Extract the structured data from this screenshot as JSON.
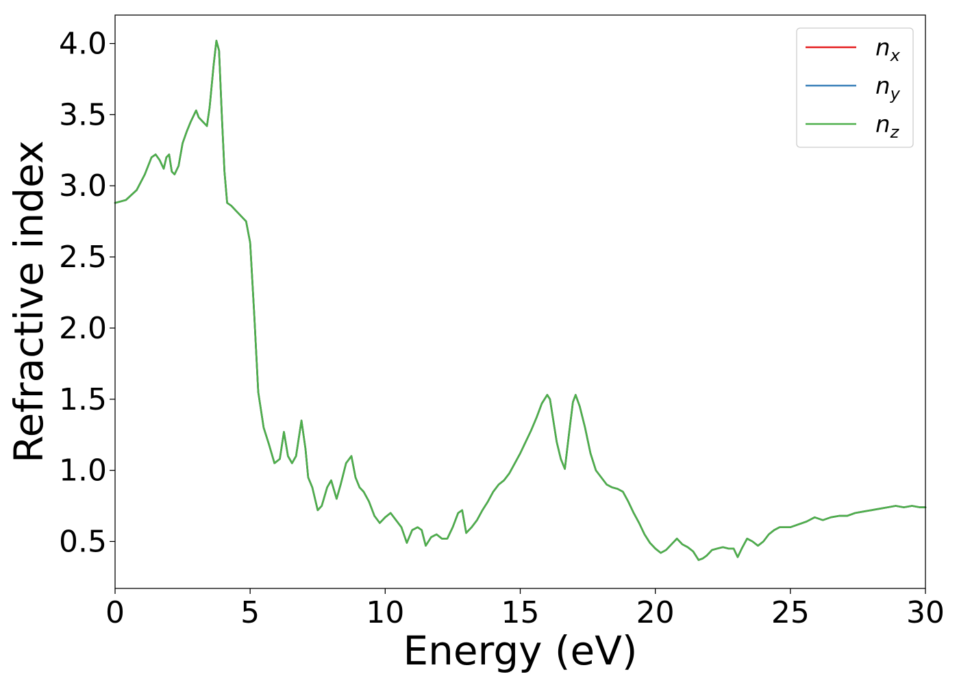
{
  "chart_data": {
    "type": "line",
    "title": "",
    "xlabel": "Energy (eV)",
    "ylabel": "Refractive index",
    "xlim": [
      0,
      30
    ],
    "ylim": [
      0.17,
      4.2
    ],
    "xticks": [
      0,
      5,
      10,
      15,
      20,
      25,
      30
    ],
    "xtick_labels": [
      "0",
      "5",
      "10",
      "15",
      "20",
      "25",
      "30"
    ],
    "yticks": [
      0.5,
      1.0,
      1.5,
      2.0,
      2.5,
      3.0,
      3.5,
      4.0
    ],
    "ytick_labels": [
      "0.5",
      "1.0",
      "1.5",
      "2.0",
      "2.5",
      "3.0",
      "3.5",
      "4.0"
    ],
    "grid": false,
    "legend_position": "top-right",
    "x": [
      0,
      0.4,
      0.8,
      1.1,
      1.35,
      1.5,
      1.65,
      1.8,
      1.9,
      2.0,
      2.1,
      2.2,
      2.35,
      2.5,
      2.65,
      2.8,
      3.0,
      3.1,
      3.25,
      3.4,
      3.5,
      3.65,
      3.75,
      3.85,
      3.95,
      4.05,
      4.15,
      4.3,
      4.5,
      4.7,
      4.85,
      5.0,
      5.15,
      5.3,
      5.5,
      5.7,
      5.9,
      6.1,
      6.25,
      6.4,
      6.55,
      6.7,
      6.9,
      7.05,
      7.15,
      7.3,
      7.5,
      7.65,
      7.85,
      8.0,
      8.2,
      8.35,
      8.55,
      8.75,
      8.9,
      9.05,
      9.2,
      9.4,
      9.6,
      9.8,
      10.0,
      10.2,
      10.4,
      10.6,
      10.8,
      11.0,
      11.2,
      11.35,
      11.5,
      11.7,
      11.9,
      12.1,
      12.3,
      12.5,
      12.7,
      12.85,
      13.0,
      13.2,
      13.4,
      13.6,
      13.8,
      14.0,
      14.2,
      14.4,
      14.6,
      14.8,
      15.0,
      15.2,
      15.4,
      15.6,
      15.8,
      16.0,
      16.1,
      16.2,
      16.35,
      16.5,
      16.65,
      16.8,
      16.95,
      17.05,
      17.2,
      17.4,
      17.6,
      17.8,
      18.0,
      18.2,
      18.4,
      18.6,
      18.8,
      19.0,
      19.2,
      19.4,
      19.6,
      19.8,
      20.0,
      20.2,
      20.4,
      20.6,
      20.8,
      21.0,
      21.2,
      21.4,
      21.6,
      21.75,
      21.9,
      22.1,
      22.3,
      22.5,
      22.7,
      22.9,
      23.05,
      23.2,
      23.4,
      23.6,
      23.8,
      24.0,
      24.2,
      24.4,
      24.6,
      24.8,
      25.0,
      25.3,
      25.6,
      25.9,
      26.2,
      26.5,
      26.8,
      27.1,
      27.4,
      27.7,
      28.0,
      28.3,
      28.6,
      28.9,
      29.2,
      29.5,
      29.8,
      30.0
    ],
    "series": [
      {
        "name": "n_x",
        "label_base": "n",
        "label_sub": "x",
        "color": "#e41a1c",
        "y": [
          2.88,
          2.9,
          2.97,
          3.08,
          3.2,
          3.22,
          3.18,
          3.12,
          3.2,
          3.22,
          3.1,
          3.08,
          3.14,
          3.3,
          3.38,
          3.45,
          3.53,
          3.48,
          3.45,
          3.42,
          3.55,
          3.85,
          4.02,
          3.95,
          3.5,
          3.1,
          2.88,
          2.86,
          2.82,
          2.78,
          2.75,
          2.6,
          2.1,
          1.55,
          1.3,
          1.18,
          1.05,
          1.08,
          1.27,
          1.1,
          1.05,
          1.1,
          1.35,
          1.15,
          0.95,
          0.88,
          0.72,
          0.75,
          0.88,
          0.93,
          0.8,
          0.9,
          1.05,
          1.1,
          0.95,
          0.88,
          0.85,
          0.78,
          0.68,
          0.63,
          0.67,
          0.7,
          0.65,
          0.6,
          0.49,
          0.58,
          0.6,
          0.58,
          0.47,
          0.53,
          0.55,
          0.52,
          0.52,
          0.6,
          0.7,
          0.72,
          0.56,
          0.6,
          0.65,
          0.72,
          0.78,
          0.85,
          0.9,
          0.93,
          0.98,
          1.05,
          1.12,
          1.2,
          1.28,
          1.37,
          1.47,
          1.53,
          1.5,
          1.38,
          1.2,
          1.08,
          1.01,
          1.25,
          1.48,
          1.53,
          1.45,
          1.3,
          1.12,
          1.0,
          0.95,
          0.9,
          0.88,
          0.87,
          0.85,
          0.78,
          0.7,
          0.63,
          0.55,
          0.49,
          0.45,
          0.42,
          0.44,
          0.48,
          0.52,
          0.48,
          0.46,
          0.43,
          0.37,
          0.38,
          0.4,
          0.44,
          0.45,
          0.46,
          0.45,
          0.45,
          0.39,
          0.45,
          0.52,
          0.5,
          0.47,
          0.5,
          0.55,
          0.58,
          0.6,
          0.6,
          0.6,
          0.62,
          0.64,
          0.67,
          0.65,
          0.67,
          0.68,
          0.68,
          0.7,
          0.71,
          0.72,
          0.73,
          0.74,
          0.75,
          0.74,
          0.75,
          0.74,
          0.74
        ]
      },
      {
        "name": "n_y",
        "label_base": "n",
        "label_sub": "y",
        "color": "#377eb8",
        "y": [
          2.88,
          2.9,
          2.97,
          3.08,
          3.2,
          3.22,
          3.18,
          3.12,
          3.2,
          3.22,
          3.1,
          3.08,
          3.14,
          3.3,
          3.38,
          3.45,
          3.53,
          3.48,
          3.45,
          3.42,
          3.55,
          3.85,
          4.02,
          3.95,
          3.5,
          3.1,
          2.88,
          2.86,
          2.82,
          2.78,
          2.75,
          2.6,
          2.1,
          1.55,
          1.3,
          1.18,
          1.05,
          1.08,
          1.27,
          1.1,
          1.05,
          1.1,
          1.35,
          1.15,
          0.95,
          0.88,
          0.72,
          0.75,
          0.88,
          0.93,
          0.8,
          0.9,
          1.05,
          1.1,
          0.95,
          0.88,
          0.85,
          0.78,
          0.68,
          0.63,
          0.67,
          0.7,
          0.65,
          0.6,
          0.49,
          0.58,
          0.6,
          0.58,
          0.47,
          0.53,
          0.55,
          0.52,
          0.52,
          0.6,
          0.7,
          0.72,
          0.56,
          0.6,
          0.65,
          0.72,
          0.78,
          0.85,
          0.9,
          0.93,
          0.98,
          1.05,
          1.12,
          1.2,
          1.28,
          1.37,
          1.47,
          1.53,
          1.5,
          1.38,
          1.2,
          1.08,
          1.01,
          1.25,
          1.48,
          1.53,
          1.45,
          1.3,
          1.12,
          1.0,
          0.95,
          0.9,
          0.88,
          0.87,
          0.85,
          0.78,
          0.7,
          0.63,
          0.55,
          0.49,
          0.45,
          0.42,
          0.44,
          0.48,
          0.52,
          0.48,
          0.46,
          0.43,
          0.37,
          0.38,
          0.4,
          0.44,
          0.45,
          0.46,
          0.45,
          0.45,
          0.39,
          0.45,
          0.52,
          0.5,
          0.47,
          0.5,
          0.55,
          0.58,
          0.6,
          0.6,
          0.6,
          0.62,
          0.64,
          0.67,
          0.65,
          0.67,
          0.68,
          0.68,
          0.7,
          0.71,
          0.72,
          0.73,
          0.74,
          0.75,
          0.74,
          0.75,
          0.74,
          0.74
        ]
      },
      {
        "name": "n_z",
        "label_base": "n",
        "label_sub": "z",
        "color": "#4daf4a",
        "y": [
          2.88,
          2.9,
          2.97,
          3.08,
          3.2,
          3.22,
          3.18,
          3.12,
          3.2,
          3.22,
          3.1,
          3.08,
          3.14,
          3.3,
          3.38,
          3.45,
          3.53,
          3.48,
          3.45,
          3.42,
          3.55,
          3.85,
          4.02,
          3.95,
          3.5,
          3.1,
          2.88,
          2.86,
          2.82,
          2.78,
          2.75,
          2.6,
          2.1,
          1.55,
          1.3,
          1.18,
          1.05,
          1.08,
          1.27,
          1.1,
          1.05,
          1.1,
          1.35,
          1.15,
          0.95,
          0.88,
          0.72,
          0.75,
          0.88,
          0.93,
          0.8,
          0.9,
          1.05,
          1.1,
          0.95,
          0.88,
          0.85,
          0.78,
          0.68,
          0.63,
          0.67,
          0.7,
          0.65,
          0.6,
          0.49,
          0.58,
          0.6,
          0.58,
          0.47,
          0.53,
          0.55,
          0.52,
          0.52,
          0.6,
          0.7,
          0.72,
          0.56,
          0.6,
          0.65,
          0.72,
          0.78,
          0.85,
          0.9,
          0.93,
          0.98,
          1.05,
          1.12,
          1.2,
          1.28,
          1.37,
          1.47,
          1.53,
          1.5,
          1.38,
          1.2,
          1.08,
          1.01,
          1.25,
          1.48,
          1.53,
          1.45,
          1.3,
          1.12,
          1.0,
          0.95,
          0.9,
          0.88,
          0.87,
          0.85,
          0.78,
          0.7,
          0.63,
          0.55,
          0.49,
          0.45,
          0.42,
          0.44,
          0.48,
          0.52,
          0.48,
          0.46,
          0.43,
          0.37,
          0.38,
          0.4,
          0.44,
          0.45,
          0.46,
          0.45,
          0.45,
          0.39,
          0.45,
          0.52,
          0.5,
          0.47,
          0.5,
          0.55,
          0.58,
          0.6,
          0.6,
          0.6,
          0.62,
          0.64,
          0.67,
          0.65,
          0.67,
          0.68,
          0.68,
          0.7,
          0.71,
          0.72,
          0.73,
          0.74,
          0.75,
          0.74,
          0.75,
          0.74,
          0.74
        ]
      }
    ]
  }
}
